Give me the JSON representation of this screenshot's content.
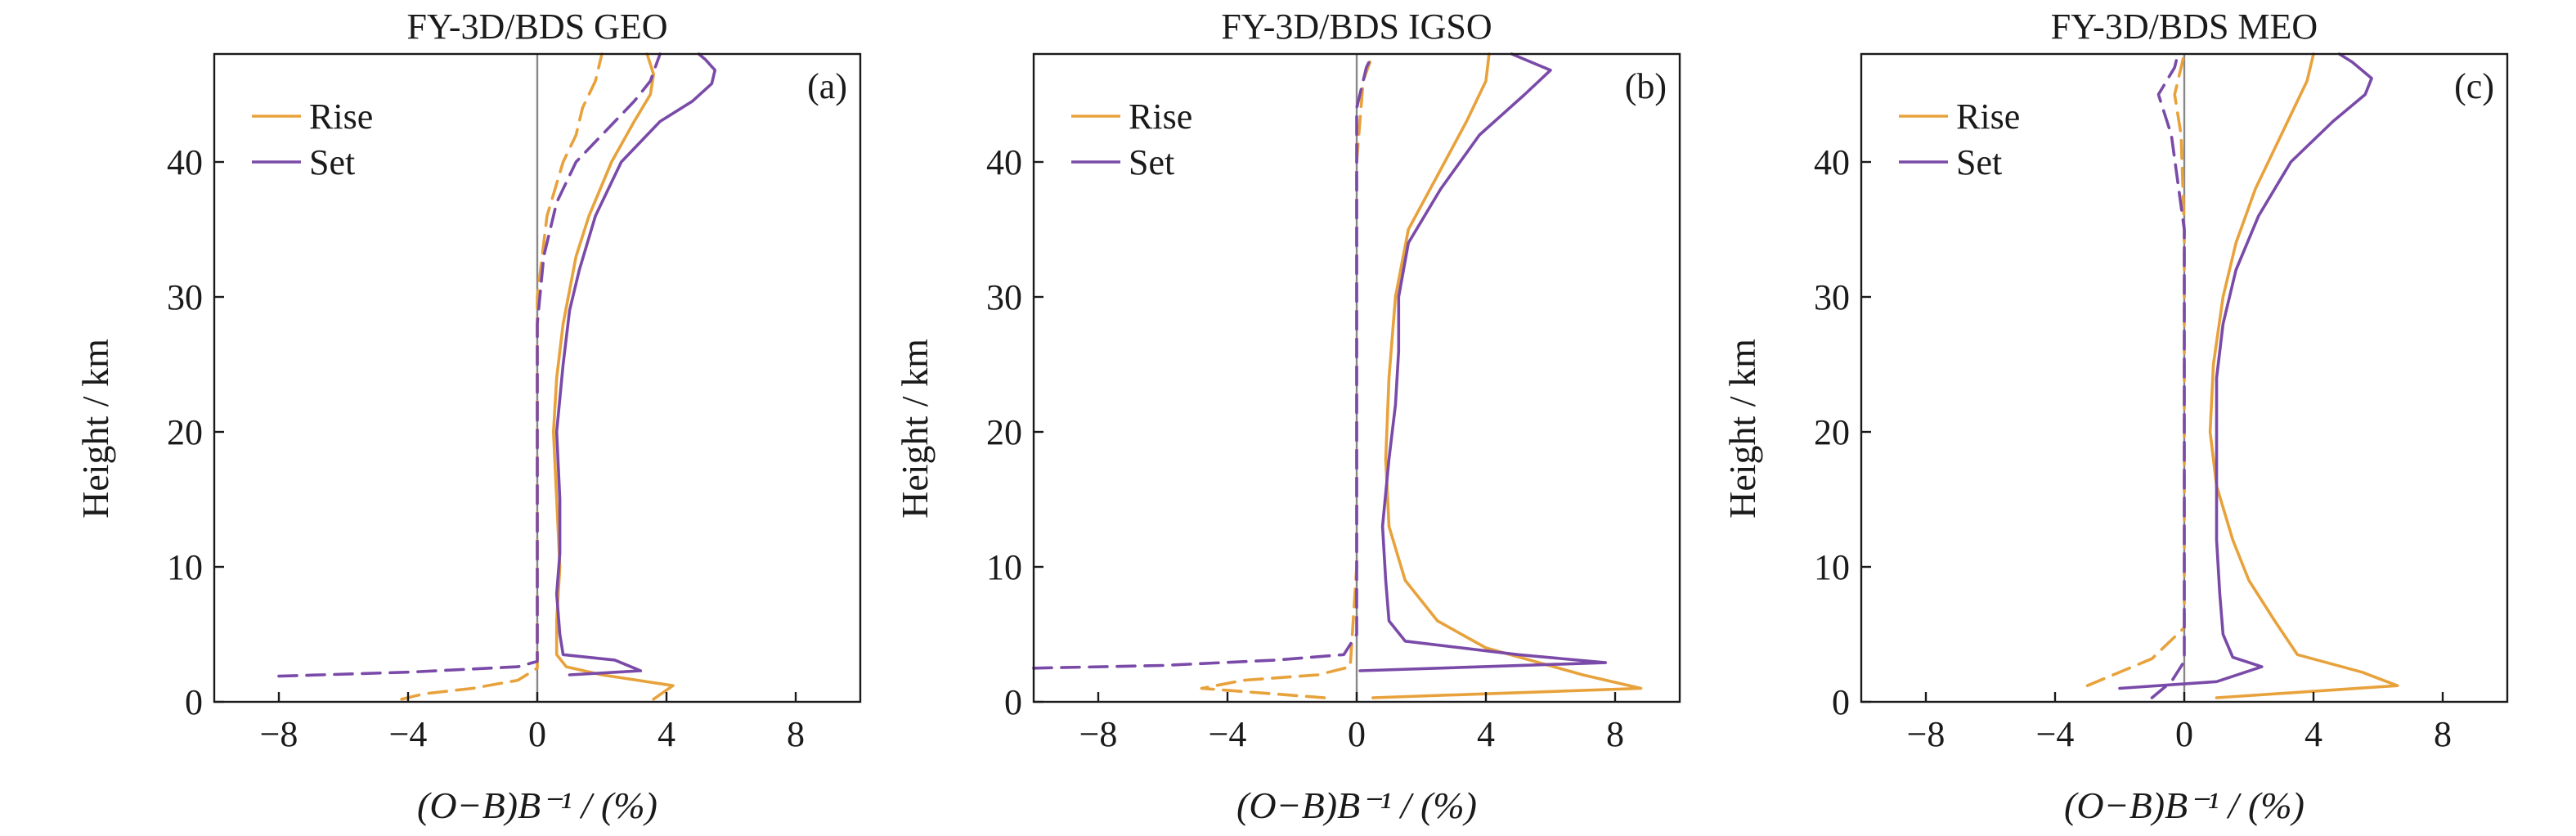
{
  "colors": {
    "rise": "#e8a23c",
    "set": "#7a4aa8",
    "zero_line": "#888888"
  },
  "chart_data": [
    {
      "type": "line",
      "title": "FY-3D/BDS GEO",
      "panel_label": "(a)",
      "xlabel": "(O−B)B⁻¹ / (%)",
      "ylabel": "Height / km",
      "xlim": [
        -10,
        10
      ],
      "ylim": [
        0,
        48
      ],
      "xticks": [
        -8,
        -4,
        0,
        4,
        8
      ],
      "xtick_labels": [
        "−8",
        "−4",
        "0",
        "4",
        "8"
      ],
      "yticks": [
        0,
        10,
        20,
        30,
        40
      ],
      "ytick_labels": [
        "0",
        "10",
        "20",
        "30",
        "40"
      ],
      "legend": {
        "position": "top-left",
        "entries": [
          "Rise",
          "Set"
        ]
      },
      "series": [
        {
          "name": "Rise",
          "stat": "std",
          "style": "solid",
          "color": "#e8a23c",
          "points": [
            [
              3.6,
              0.2
            ],
            [
              4.2,
              1.2
            ],
            [
              2.0,
              2.0
            ],
            [
              0.9,
              2.6
            ],
            [
              0.6,
              3.5
            ],
            [
              0.6,
              6
            ],
            [
              0.7,
              10
            ],
            [
              0.6,
              15
            ],
            [
              0.5,
              20
            ],
            [
              0.6,
              24
            ],
            [
              0.8,
              28
            ],
            [
              1.2,
              33
            ],
            [
              1.6,
              36
            ],
            [
              2.3,
              40
            ],
            [
              3.0,
              43
            ],
            [
              3.5,
              45
            ],
            [
              3.6,
              46.5
            ],
            [
              3.4,
              48
            ]
          ]
        },
        {
          "name": "Set",
          "stat": "std",
          "style": "solid",
          "color": "#7a4aa8",
          "points": [
            [
              1.0,
              2.0
            ],
            [
              3.2,
              2.3
            ],
            [
              2.4,
              3.1
            ],
            [
              0.8,
              3.5
            ],
            [
              0.7,
              5
            ],
            [
              0.6,
              8
            ],
            [
              0.7,
              11
            ],
            [
              0.7,
              15
            ],
            [
              0.6,
              20
            ],
            [
              0.8,
              25
            ],
            [
              1.0,
              29
            ],
            [
              1.3,
              32
            ],
            [
              1.8,
              36
            ],
            [
              2.6,
              40
            ],
            [
              3.8,
              43
            ],
            [
              4.8,
              44.5
            ],
            [
              5.4,
              45.8
            ],
            [
              5.5,
              46.8
            ],
            [
              5.2,
              47.6
            ],
            [
              5.0,
              48
            ]
          ]
        },
        {
          "name": "Rise",
          "stat": "mean",
          "style": "dashed",
          "color": "#e8a23c",
          "points": [
            [
              -4.2,
              0.2
            ],
            [
              -3.5,
              0.6
            ],
            [
              -2.0,
              1.0
            ],
            [
              -0.6,
              1.6
            ],
            [
              0.0,
              2.5
            ],
            [
              0.0,
              10
            ],
            [
              0.0,
              20
            ],
            [
              0.0,
              30
            ],
            [
              0.3,
              36
            ],
            [
              0.8,
              40
            ],
            [
              1.2,
              42
            ],
            [
              1.4,
              44
            ],
            [
              1.8,
              46
            ],
            [
              2.0,
              48
            ]
          ]
        },
        {
          "name": "Set",
          "stat": "mean",
          "style": "dashed",
          "color": "#7a4aa8",
          "points": [
            [
              -8.0,
              1.9
            ],
            [
              -4.0,
              2.2
            ],
            [
              -0.6,
              2.6
            ],
            [
              0.0,
              3.0
            ],
            [
              0.0,
              10
            ],
            [
              0.0,
              20
            ],
            [
              0.0,
              28
            ],
            [
              0.2,
              33
            ],
            [
              0.6,
              37
            ],
            [
              1.2,
              40
            ],
            [
              2.2,
              42.5
            ],
            [
              3.0,
              44.5
            ],
            [
              3.5,
              46
            ],
            [
              3.8,
              48
            ]
          ]
        }
      ]
    },
    {
      "type": "line",
      "title": "FY-3D/BDS IGSO",
      "panel_label": "(b)",
      "xlabel": "(O−B)B⁻¹ / (%)",
      "ylabel": "Height / km",
      "xlim": [
        -10,
        10
      ],
      "ylim": [
        0,
        48
      ],
      "xticks": [
        -8,
        -4,
        0,
        4,
        8
      ],
      "xtick_labels": [
        "−8",
        "−4",
        "0",
        "4",
        "8"
      ],
      "yticks": [
        0,
        10,
        20,
        30,
        40
      ],
      "ytick_labels": [
        "0",
        "10",
        "20",
        "30",
        "40"
      ],
      "legend": {
        "position": "top-left",
        "entries": [
          "Rise",
          "Set"
        ]
      },
      "series": [
        {
          "name": "Rise",
          "stat": "std",
          "style": "solid",
          "color": "#e8a23c",
          "points": [
            [
              0.5,
              0.3
            ],
            [
              8.8,
              1.0
            ],
            [
              7.0,
              2.0
            ],
            [
              4.0,
              4.0
            ],
            [
              2.5,
              6
            ],
            [
              1.5,
              9
            ],
            [
              1.0,
              13
            ],
            [
              0.9,
              18
            ],
            [
              1.0,
              24
            ],
            [
              1.2,
              30
            ],
            [
              1.6,
              35
            ],
            [
              2.5,
              39
            ],
            [
              3.4,
              43
            ],
            [
              4.0,
              46
            ],
            [
              4.1,
              48
            ]
          ]
        },
        {
          "name": "Set",
          "stat": "std",
          "style": "solid",
          "color": "#7a4aa8",
          "points": [
            [
              0.1,
              2.3
            ],
            [
              7.7,
              2.9
            ],
            [
              5.0,
              3.5
            ],
            [
              1.5,
              4.5
            ],
            [
              1.0,
              6
            ],
            [
              0.9,
              9
            ],
            [
              0.8,
              13
            ],
            [
              1.0,
              18
            ],
            [
              1.2,
              22
            ],
            [
              1.3,
              26
            ],
            [
              1.3,
              30
            ],
            [
              1.6,
              34
            ],
            [
              2.6,
              38
            ],
            [
              3.8,
              42
            ],
            [
              5.2,
              45
            ],
            [
              6.0,
              46.8
            ],
            [
              5.2,
              47.6
            ],
            [
              4.8,
              48
            ]
          ]
        },
        {
          "name": "Rise",
          "stat": "mean",
          "style": "dashed",
          "color": "#e8a23c",
          "points": [
            [
              -1.0,
              0.3
            ],
            [
              -4.8,
              1.0
            ],
            [
              -3.5,
              1.6
            ],
            [
              -1.2,
              2.0
            ],
            [
              -0.2,
              2.6
            ],
            [
              0.0,
              10
            ],
            [
              0.0,
              20
            ],
            [
              0.0,
              30
            ],
            [
              0.0,
              40
            ],
            [
              0.2,
              46
            ],
            [
              0.5,
              48
            ]
          ]
        },
        {
          "name": "Set",
          "stat": "mean",
          "style": "dashed",
          "color": "#7a4aa8",
          "points": [
            [
              -10.0,
              2.5
            ],
            [
              -6.0,
              2.7
            ],
            [
              -2.5,
              3.1
            ],
            [
              -0.4,
              3.5
            ],
            [
              0.0,
              5
            ],
            [
              0.0,
              15
            ],
            [
              0.0,
              25
            ],
            [
              0.0,
              35
            ],
            [
              0.0,
              44
            ],
            [
              0.3,
              47
            ],
            [
              0.5,
              48
            ]
          ]
        }
      ]
    },
    {
      "type": "line",
      "title": "FY-3D/BDS MEO",
      "panel_label": "(c)",
      "xlabel": "(O−B)B⁻¹ / (%)",
      "ylabel": "Height / km",
      "xlim": [
        -10,
        10
      ],
      "ylim": [
        0,
        48
      ],
      "xticks": [
        -8,
        -4,
        0,
        4,
        8
      ],
      "xtick_labels": [
        "−8",
        "−4",
        "0",
        "4",
        "8"
      ],
      "yticks": [
        0,
        10,
        20,
        30,
        40
      ],
      "ytick_labels": [
        "0",
        "10",
        "20",
        "30",
        "40"
      ],
      "legend": {
        "position": "top-left",
        "entries": [
          "Rise",
          "Set"
        ]
      },
      "series": [
        {
          "name": "Rise",
          "stat": "std",
          "style": "solid",
          "color": "#e8a23c",
          "points": [
            [
              1.0,
              0.3
            ],
            [
              6.6,
              1.2
            ],
            [
              5.5,
              2.2
            ],
            [
              3.5,
              3.5
            ],
            [
              2.8,
              6
            ],
            [
              2.0,
              9
            ],
            [
              1.5,
              12
            ],
            [
              1.0,
              16
            ],
            [
              0.8,
              20
            ],
            [
              0.9,
              25
            ],
            [
              1.2,
              30
            ],
            [
              1.6,
              34
            ],
            [
              2.2,
              38
            ],
            [
              3.0,
              42
            ],
            [
              3.8,
              46
            ],
            [
              4.0,
              48
            ]
          ]
        },
        {
          "name": "Set",
          "stat": "std",
          "style": "solid",
          "color": "#7a4aa8",
          "points": [
            [
              -2.0,
              1.0
            ],
            [
              1.0,
              1.5
            ],
            [
              2.4,
              2.6
            ],
            [
              1.5,
              3.3
            ],
            [
              1.2,
              5
            ],
            [
              1.1,
              8
            ],
            [
              1.0,
              12
            ],
            [
              1.0,
              16
            ],
            [
              1.0,
              20
            ],
            [
              1.0,
              24
            ],
            [
              1.2,
              28
            ],
            [
              1.6,
              32
            ],
            [
              2.3,
              36
            ],
            [
              3.3,
              40
            ],
            [
              4.6,
              43
            ],
            [
              5.6,
              45
            ],
            [
              5.8,
              46.2
            ],
            [
              5.2,
              47.4
            ],
            [
              4.8,
              48
            ]
          ]
        },
        {
          "name": "Rise",
          "stat": "mean",
          "style": "dashed",
          "color": "#e8a23c",
          "points": [
            [
              -3.0,
              1.2
            ],
            [
              -2.2,
              2.0
            ],
            [
              -1.0,
              3.2
            ],
            [
              0.0,
              5.5
            ],
            [
              0.0,
              15
            ],
            [
              0.0,
              25
            ],
            [
              0.0,
              35
            ],
            [
              -0.1,
              42
            ],
            [
              -0.3,
              45
            ],
            [
              0.0,
              48
            ]
          ]
        },
        {
          "name": "Set",
          "stat": "mean",
          "style": "dashed",
          "color": "#7a4aa8",
          "points": [
            [
              -1.0,
              0.3
            ],
            [
              -0.4,
              1.5
            ],
            [
              0.0,
              3
            ],
            [
              0.0,
              15
            ],
            [
              0.0,
              25
            ],
            [
              0.0,
              35
            ],
            [
              -0.4,
              42
            ],
            [
              -0.8,
              45
            ],
            [
              -0.3,
              47
            ],
            [
              -0.2,
              48
            ]
          ]
        }
      ]
    }
  ]
}
